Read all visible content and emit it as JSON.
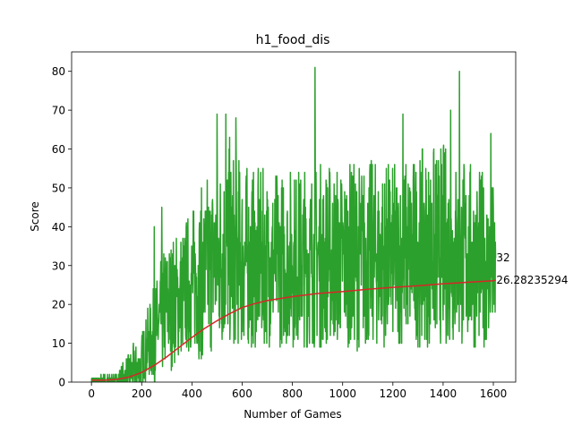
{
  "chart_data": {
    "type": "line",
    "title": "h1_food_dis",
    "xlabel": "Number of Games",
    "ylabel": "Score",
    "xlim": [
      -79,
      1689
    ],
    "ylim": [
      0,
      85
    ],
    "x_ticks": [
      0,
      200,
      400,
      600,
      800,
      1000,
      1200,
      1400,
      1600
    ],
    "y_ticks": [
      0,
      10,
      20,
      30,
      40,
      50,
      60,
      70,
      80
    ],
    "grid": false,
    "legend": "none",
    "series": [
      {
        "role": "score",
        "color": "#2ca02c",
        "num_points": 1610,
        "seed": 7,
        "envelope_x": [
          0,
          50,
          100,
          150,
          200,
          250,
          300,
          350,
          400,
          450,
          500,
          550,
          600,
          650,
          700,
          800,
          900,
          1000,
          1100,
          1200,
          1300,
          1400,
          1500,
          1600
        ],
        "envelope_low": [
          0,
          0,
          0,
          0,
          0,
          0,
          2,
          5,
          7,
          5,
          7,
          8,
          8,
          8,
          9,
          9,
          8,
          9,
          8,
          9,
          9,
          9,
          8,
          9
        ],
        "envelope_high": [
          1,
          2,
          2,
          8,
          13,
          25,
          38,
          40,
          46,
          52,
          60,
          63,
          58,
          55,
          55,
          56,
          58,
          57,
          58,
          57,
          60,
          62,
          58,
          52
        ],
        "spikes": [
          {
            "x": 890,
            "y": 81
          },
          {
            "x": 1465,
            "y": 80
          },
          {
            "x": 500,
            "y": 69
          },
          {
            "x": 535,
            "y": 69
          },
          {
            "x": 575,
            "y": 68
          },
          {
            "x": 1240,
            "y": 69
          },
          {
            "x": 1430,
            "y": 70
          },
          {
            "x": 1590,
            "y": 64
          },
          {
            "x": 280,
            "y": 45
          },
          {
            "x": 250,
            "y": 40
          }
        ],
        "last_value": 32
      },
      {
        "role": "mean",
        "color": "#d62728",
        "x": [
          0,
          50,
          100,
          150,
          200,
          250,
          300,
          350,
          400,
          450,
          500,
          550,
          600,
          650,
          700,
          800,
          900,
          1000,
          1100,
          1200,
          1300,
          1400,
          1500,
          1600,
          1610
        ],
        "y": [
          0.5,
          0.5,
          0.7,
          1.3,
          2.5,
          4.3,
          6.5,
          9.0,
          11.5,
          13.8,
          15.8,
          17.6,
          19.2,
          20.2,
          21.0,
          22.0,
          22.8,
          23.3,
          23.9,
          24.4,
          24.8,
          25.3,
          25.7,
          26.1,
          26.28
        ],
        "last_value": 26.28235294
      }
    ],
    "annotations": [
      {
        "text": "32",
        "x": 1612,
        "y": 32
      },
      {
        "text": "26.28235294",
        "x": 1612,
        "y": 26.28235294
      }
    ]
  }
}
